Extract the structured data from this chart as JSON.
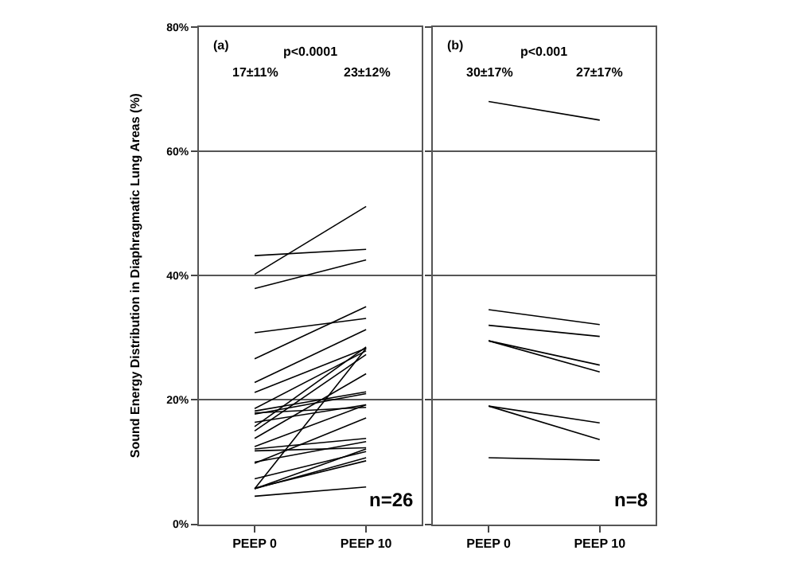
{
  "chart_data": [
    {
      "type": "line",
      "categories": [
        "PEEP 0",
        "PEEP 10"
      ],
      "ylabel": "Sound Energy Distribution in Diaphragmatic Lung Areas (%)",
      "ylim": [
        0,
        80
      ],
      "yticks": [
        {
          "value": 0,
          "label": "0%"
        },
        {
          "value": 20,
          "label": "20%"
        },
        {
          "value": 40,
          "label": "40%"
        },
        {
          "value": 60,
          "label": "60%"
        },
        {
          "value": 80,
          "label": "80%"
        }
      ],
      "grid": "y",
      "marker": "none",
      "line_style": "solid",
      "annotations": [
        "(a)",
        "p<0.0001",
        "17±11%",
        "23±12%",
        "n=26"
      ],
      "series": [
        {
          "color": "#000000",
          "values": [
            40.2,
            51.1
          ]
        },
        {
          "color": "#000000",
          "values": [
            43.2,
            44.2
          ]
        },
        {
          "color": "#000000",
          "values": [
            37.9,
            42.5
          ]
        },
        {
          "color": "#000000",
          "values": [
            30.8,
            33.1
          ]
        },
        {
          "color": "#000000",
          "values": [
            26.6,
            35.0
          ]
        },
        {
          "color": "#000000",
          "values": [
            22.8,
            31.3
          ]
        },
        {
          "color": "#000000",
          "values": [
            21.2,
            28.3
          ]
        },
        {
          "color": "#000000",
          "values": [
            18.6,
            27.9
          ]
        },
        {
          "color": "#000000",
          "values": [
            18.2,
            21.3
          ]
        },
        {
          "color": "#000000",
          "values": [
            17.7,
            21.0
          ]
        },
        {
          "color": "#000000",
          "values": [
            16.4,
            19.2
          ]
        },
        {
          "color": "#000000",
          "values": [
            15.7,
            28.5
          ]
        },
        {
          "color": "#000000",
          "values": [
            15.0,
            27.3
          ]
        },
        {
          "color": "#000000",
          "values": [
            13.8,
            24.2
          ]
        },
        {
          "color": "#000000",
          "values": [
            12.5,
            19.2
          ]
        },
        {
          "color": "#000000",
          "values": [
            12.1,
            13.8
          ]
        },
        {
          "color": "#000000",
          "values": [
            11.8,
            12.3
          ]
        },
        {
          "color": "#000000",
          "values": [
            10.0,
            13.3
          ]
        },
        {
          "color": "#000000",
          "values": [
            9.8,
            17.1
          ]
        },
        {
          "color": "#000000",
          "values": [
            7.3,
            11.7
          ]
        },
        {
          "color": "#000000",
          "values": [
            5.8,
            10.2
          ]
        },
        {
          "color": "#000000",
          "values": [
            5.7,
            10.7
          ]
        },
        {
          "color": "#000000",
          "values": [
            5.7,
            28.3
          ]
        },
        {
          "color": "#000000",
          "values": [
            4.5,
            6.0
          ]
        },
        {
          "color": "#000000",
          "values": [
            5.7,
            12.1
          ]
        },
        {
          "color": "#000000",
          "values": [
            17.9,
            18.8
          ]
        }
      ]
    },
    {
      "type": "line",
      "categories": [
        "PEEP 0",
        "PEEP 10"
      ],
      "ylim": [
        0,
        80
      ],
      "yticks": [
        {
          "value": 0,
          "label": null
        },
        {
          "value": 20,
          "label": null
        },
        {
          "value": 40,
          "label": null
        },
        {
          "value": 60,
          "label": null
        },
        {
          "value": 80,
          "label": null
        }
      ],
      "tick_labels": "x",
      "grid": "y",
      "marker": "none",
      "line_style": "solid",
      "annotations": [
        "(b)",
        "p<0.001",
        "30±17%",
        "27±17%",
        "n=8"
      ],
      "series": [
        {
          "color": "#000000",
          "values": [
            68.0,
            65.0
          ]
        },
        {
          "color": "#000000",
          "values": [
            34.5,
            32.1
          ]
        },
        {
          "color": "#000000",
          "values": [
            32.0,
            30.2
          ]
        },
        {
          "color": "#000000",
          "values": [
            29.5,
            25.6
          ]
        },
        {
          "color": "#000000",
          "values": [
            29.5,
            24.5
          ]
        },
        {
          "color": "#000000",
          "values": [
            19.0,
            16.3
          ]
        },
        {
          "color": "#000000",
          "values": [
            19.0,
            13.6
          ]
        },
        {
          "color": "#000000",
          "values": [
            10.7,
            10.3
          ]
        }
      ]
    }
  ]
}
